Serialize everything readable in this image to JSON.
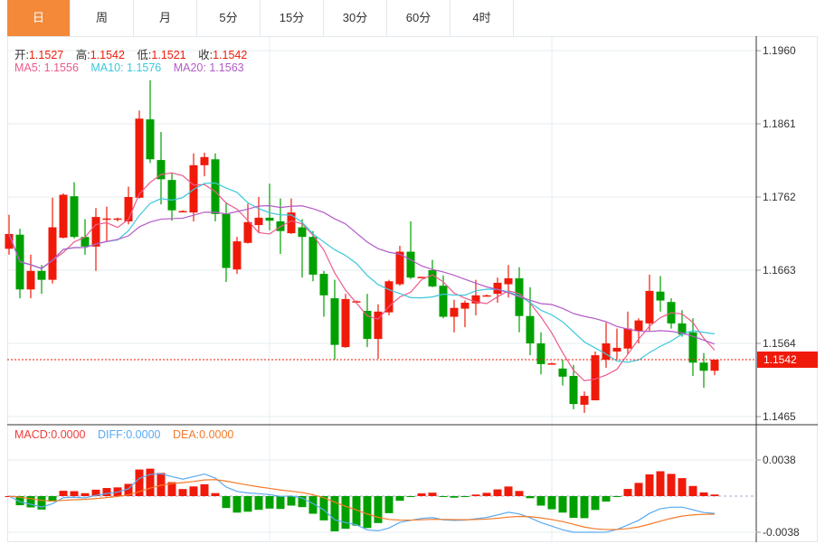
{
  "tabs": [
    {
      "label": "日",
      "active": true
    },
    {
      "label": "周"
    },
    {
      "label": "月"
    },
    {
      "label": "5分"
    },
    {
      "label": "15分"
    },
    {
      "label": "30分"
    },
    {
      "label": "60分"
    },
    {
      "label": "4时"
    }
  ],
  "ohlc": {
    "open_label": "开:",
    "open": "1.1527",
    "high_label": "高:",
    "high": "1.1542",
    "low_label": "低:",
    "low": "1.1521",
    "close_label": "收:",
    "close": "1.1542"
  },
  "ma": {
    "ma5_label": "MA5:",
    "ma5": "1.1556",
    "ma10_label": "MA10:",
    "ma10": "1.1576",
    "ma20_label": "MA20:",
    "ma20": "1.1563"
  },
  "macd": {
    "macd_label": "MACD:",
    "macd": "0.0000",
    "diff_label": "DIFF:",
    "diff": "0.0000",
    "dea_label": "DEA:",
    "dea": "0.0000"
  },
  "colors": {
    "up": "#f01a0a",
    "down": "#00a000",
    "accent": "#f5893a",
    "ma5": "#ec5a8a",
    "ma10": "#3cc8dc",
    "ma20": "#b45ac8",
    "diff": "#5aaaf0",
    "dea": "#f57a28"
  },
  "current_price": "1.1542",
  "chart_data": {
    "type": "candlestick",
    "ylim": [
      1.1465,
      1.196
    ],
    "y_ticks": [
      "1.1960",
      "1.1861",
      "1.1762",
      "1.1663",
      "1.1564",
      "1.1465"
    ],
    "macd_ylim": [
      -0.0038,
      0.0038
    ],
    "macd_ticks": [
      "0.0038",
      "-0.0038"
    ],
    "candles_ohlc": [
      [
        1.1692,
        1.1738,
        1.1684,
        1.1712
      ],
      [
        1.1711,
        1.1719,
        1.1625,
        1.1637
      ],
      [
        1.1637,
        1.1684,
        1.1625,
        1.1662
      ],
      [
        1.1662,
        1.167,
        1.1631,
        1.165
      ],
      [
        1.165,
        1.1761,
        1.1645,
        1.1721
      ],
      [
        1.1707,
        1.1767,
        1.1706,
        1.1765
      ],
      [
        1.1763,
        1.1782,
        1.1706,
        1.1708
      ],
      [
        1.1708,
        1.1732,
        1.1684,
        1.1695
      ],
      [
        1.1695,
        1.1747,
        1.1662,
        1.1735
      ],
      [
        1.1732,
        1.1749,
        1.1702,
        1.1733
      ],
      [
        1.1732,
        1.1734,
        1.1729,
        1.1733
      ],
      [
        1.1729,
        1.1776,
        1.1725,
        1.1762
      ],
      [
        1.1761,
        1.1879,
        1.176,
        1.1868
      ],
      [
        1.1867,
        1.192,
        1.1808,
        1.1813
      ],
      [
        1.1812,
        1.185,
        1.1752,
        1.1786
      ],
      [
        1.1785,
        1.1795,
        1.173,
        1.1744
      ],
      [
        1.1743,
        1.1744,
        1.1742,
        1.1743
      ],
      [
        1.1741,
        1.1821,
        1.1729,
        1.1805
      ],
      [
        1.1805,
        1.1822,
        1.179,
        1.1816
      ],
      [
        1.1813,
        1.1821,
        1.1729,
        1.1739
      ],
      [
        1.1739,
        1.1755,
        1.1647,
        1.1666
      ],
      [
        1.1664,
        1.1708,
        1.1658,
        1.1702
      ],
      [
        1.17,
        1.1753,
        1.1699,
        1.1728
      ],
      [
        1.1724,
        1.1762,
        1.1713,
        1.1734
      ],
      [
        1.1734,
        1.178,
        1.1717,
        1.173
      ],
      [
        1.1729,
        1.176,
        1.1685,
        1.1716
      ],
      [
        1.1713,
        1.176,
        1.1712,
        1.1741
      ],
      [
        1.1721,
        1.1732,
        1.1653,
        1.1708
      ],
      [
        1.1708,
        1.1716,
        1.1648,
        1.1657
      ],
      [
        1.1658,
        1.1662,
        1.16,
        1.1629
      ],
      [
        1.1625,
        1.165,
        1.1542,
        1.1562
      ],
      [
        1.1559,
        1.1631,
        1.1558,
        1.1624
      ],
      [
        1.162,
        1.1622,
        1.1619,
        1.1621
      ],
      [
        1.1608,
        1.1631,
        1.1559,
        1.157
      ],
      [
        1.157,
        1.1617,
        1.1543,
        1.1607
      ],
      [
        1.1606,
        1.165,
        1.1602,
        1.1648
      ],
      [
        1.1644,
        1.1696,
        1.1642,
        1.1688
      ],
      [
        1.1688,
        1.1729,
        1.1651,
        1.1653
      ],
      [
        1.1653,
        1.1654,
        1.1652,
        1.1654
      ],
      [
        1.1663,
        1.1677,
        1.164,
        1.1641
      ],
      [
        1.1642,
        1.1656,
        1.1598,
        1.16
      ],
      [
        1.16,
        1.1623,
        1.1579,
        1.1612
      ],
      [
        1.1611,
        1.1622,
        1.1586,
        1.1619
      ],
      [
        1.1618,
        1.165,
        1.1602,
        1.1629
      ],
      [
        1.1629,
        1.163,
        1.1628,
        1.1629
      ],
      [
        1.1631,
        1.1653,
        1.1619,
        1.1646
      ],
      [
        1.1644,
        1.167,
        1.1626,
        1.1652
      ],
      [
        1.1652,
        1.1667,
        1.1579,
        1.1601
      ],
      [
        1.1601,
        1.164,
        1.1548,
        1.1564
      ],
      [
        1.1564,
        1.1579,
        1.1522,
        1.1536
      ],
      [
        1.1537,
        1.1538,
        1.1536,
        1.1537
      ],
      [
        1.153,
        1.1542,
        1.1507,
        1.1519
      ],
      [
        1.152,
        1.1535,
        1.1475,
        1.1482
      ],
      [
        1.1481,
        1.1499,
        1.147,
        1.1493
      ],
      [
        1.1487,
        1.1553,
        1.1487,
        1.1548
      ],
      [
        1.1542,
        1.1592,
        1.1531,
        1.1564
      ],
      [
        1.1553,
        1.1584,
        1.1542,
        1.1558
      ],
      [
        1.1557,
        1.1607,
        1.1549,
        1.1584
      ],
      [
        1.1581,
        1.1598,
        1.1564,
        1.1595
      ],
      [
        1.1591,
        1.1657,
        1.1581,
        1.1635
      ],
      [
        1.1634,
        1.1655,
        1.1607,
        1.1622
      ],
      [
        1.162,
        1.1625,
        1.1584,
        1.1591
      ],
      [
        1.1591,
        1.1609,
        1.1573,
        1.1576
      ],
      [
        1.1579,
        1.1598,
        1.152,
        1.1538
      ],
      [
        1.1538,
        1.1551,
        1.1504,
        1.1527
      ],
      [
        1.1527,
        1.1542,
        1.1521,
        1.1542
      ]
    ]
  }
}
